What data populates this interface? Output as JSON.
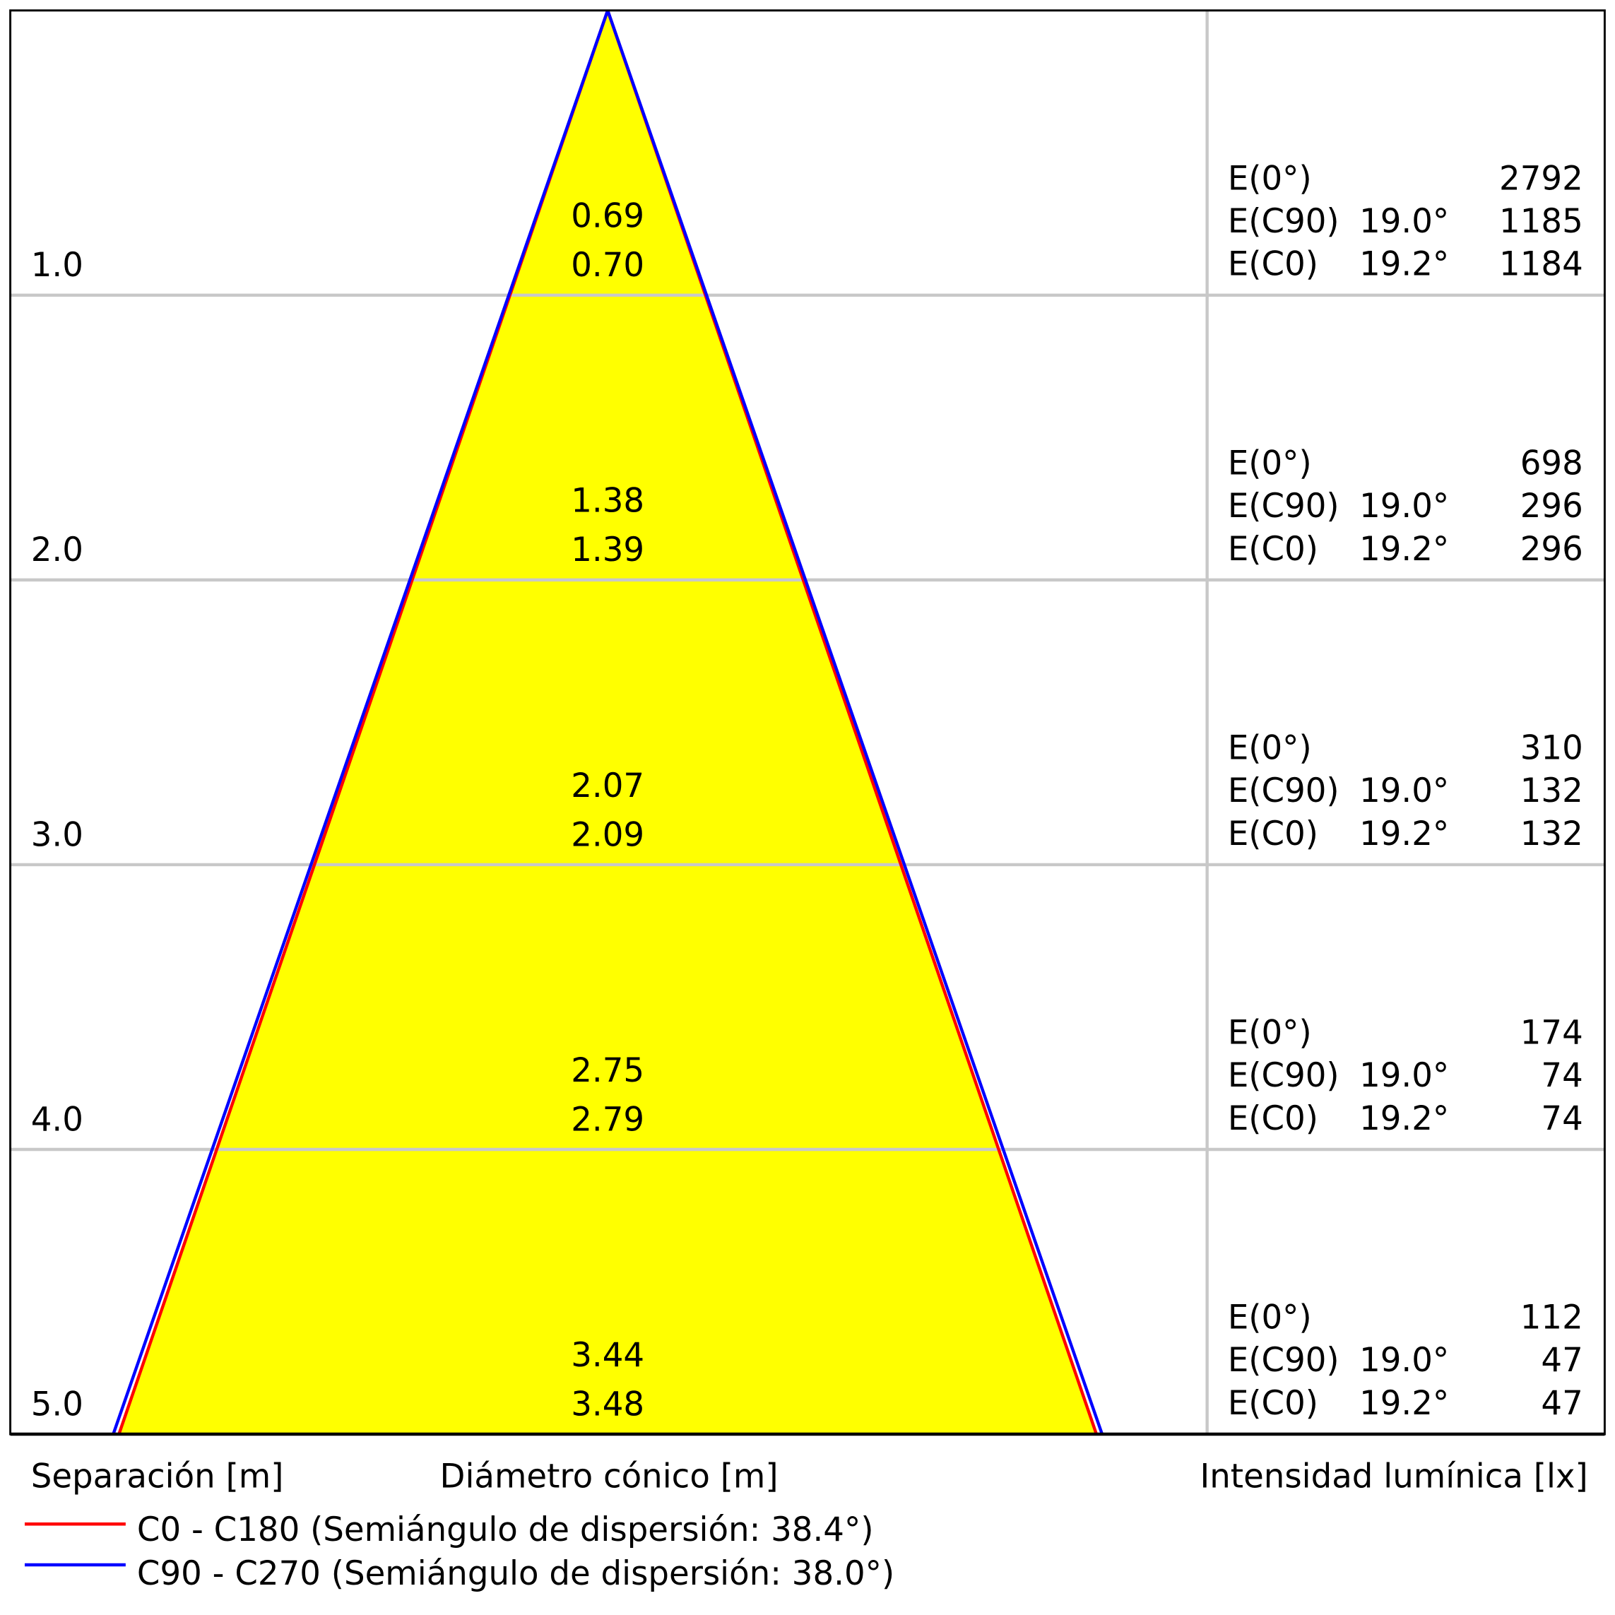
{
  "chart_data": {
    "type": "cone-diagram",
    "distances": [
      "1.0",
      "2.0",
      "3.0",
      "4.0",
      "5.0"
    ],
    "diameter_c0": [
      "0.69",
      "1.38",
      "2.07",
      "2.75",
      "3.44"
    ],
    "diameter_c90": [
      "0.70",
      "1.39",
      "2.09",
      "2.79",
      "3.48"
    ],
    "illuminance": [
      {
        "e0": "2792",
        "c90_angle": "19.0°",
        "c90": "1185",
        "c0_angle": "19.2°",
        "c0": "1184"
      },
      {
        "e0": "698",
        "c90_angle": "19.0°",
        "c90": "296",
        "c0_angle": "19.2°",
        "c0": "296"
      },
      {
        "e0": "310",
        "c90_angle": "19.0°",
        "c90": "132",
        "c0_angle": "19.2°",
        "c0": "132"
      },
      {
        "e0": "174",
        "c90_angle": "19.0°",
        "c90": "74",
        "c0_angle": "19.2°",
        "c0": "74"
      },
      {
        "e0": "112",
        "c90_angle": "19.0°",
        "c90": "47",
        "c0_angle": "19.2°",
        "c0": "47"
      }
    ],
    "row_labels": {
      "e0": "E(0°)",
      "c90": "E(C90)",
      "c0": "E(C0)"
    },
    "max_distance": 5,
    "diameter_at_max": {
      "c0": 3.44,
      "c90": 3.48
    },
    "xlabel_left": "Separación [m]",
    "xlabel_center": "Diámetro cónico [m]",
    "xlabel_right": "Intensidad lumínica [lx]",
    "legend": [
      {
        "label": "C0 - C180 (Semiángulo de dispersión: 38.4°)",
        "color": "#ff0000"
      },
      {
        "label": "C90 - C270 (Semiángulo de dispersión: 38.0°)",
        "color": "#0000ff"
      }
    ],
    "fill_color": "#ffff00"
  }
}
